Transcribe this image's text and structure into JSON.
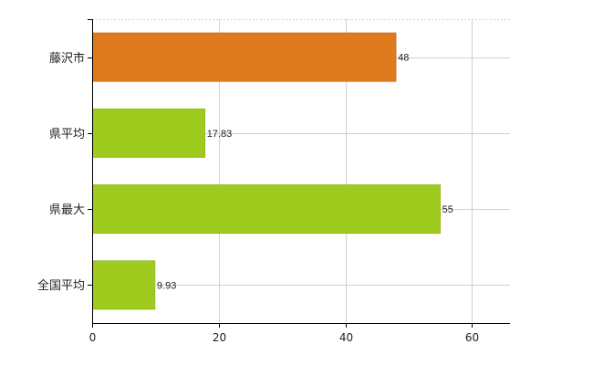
{
  "chart_data": {
    "type": "bar",
    "orientation": "horizontal",
    "categories": [
      "藤沢市",
      "県平均",
      "県最大",
      "全国平均"
    ],
    "values": [
      48,
      17.83,
      55,
      9.93
    ],
    "value_labels": [
      "48",
      "17.83",
      "55",
      "9.93"
    ],
    "bar_colors": [
      "#e07a1e",
      "#9fcb1e",
      "#9fcb1e",
      "#9fcb1e"
    ],
    "bar_edge_colors": [
      "#c4621a",
      "#86b015",
      "#86b015",
      "#86b015"
    ],
    "xlim": [
      0,
      66
    ],
    "xticks": [
      0,
      20,
      40,
      60
    ],
    "xtick_labels": [
      "0",
      "20",
      "40",
      "60"
    ],
    "grid": true,
    "grid_color": "#d0d0d0",
    "title": "",
    "xlabel": "",
    "ylabel": ""
  }
}
